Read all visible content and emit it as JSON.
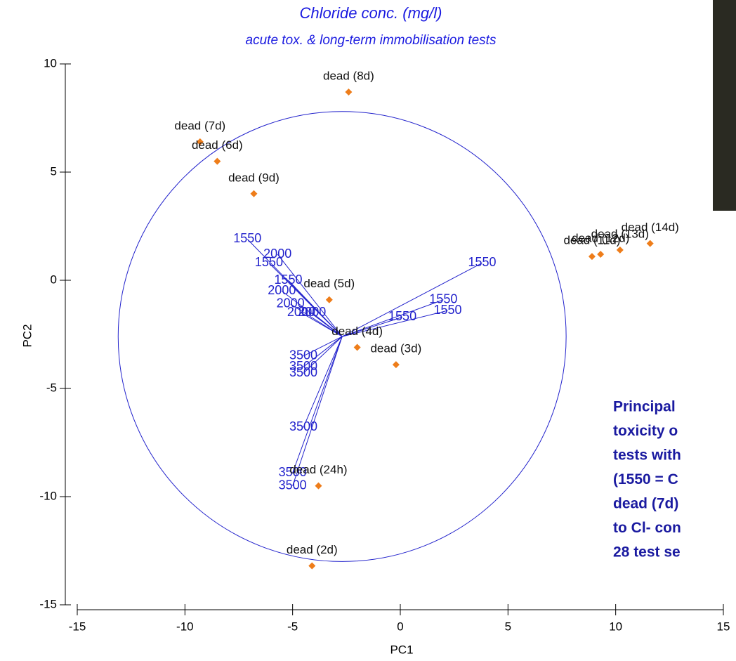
{
  "chart_data": {
    "type": "scatter",
    "title": "Chloride conc. (mg/l)",
    "subtitle": "acute tox. & long-term immobilisation tests",
    "xlabel": "PC1",
    "ylabel": "PC2",
    "xlim": [
      -15,
      15
    ],
    "ylim": [
      -15,
      10
    ],
    "xticks": [
      -15,
      -10,
      -5,
      0,
      5,
      10,
      15
    ],
    "yticks": [
      -15,
      -10,
      -5,
      0,
      5,
      10
    ],
    "points": {
      "color": "#ee7d1a",
      "labels": [
        "dead (8d)",
        "dead (7d)",
        "dead (6d)",
        "dead (9d)",
        "dead (5d)",
        "dead (4d)",
        "dead (3d)",
        "dead (24h)",
        "dead (2d)",
        "dead (11d)",
        "dead (12d)",
        "dead (13d)",
        "dead (14d)"
      ],
      "x": [
        -2.4,
        -9.3,
        -8.5,
        -6.8,
        -3.3,
        -2.0,
        -0.2,
        -3.8,
        -4.1,
        8.9,
        9.3,
        10.2,
        11.6
      ],
      "y": [
        8.7,
        6.4,
        5.5,
        4.0,
        -0.9,
        -3.1,
        -3.9,
        -9.5,
        -13.2,
        1.1,
        1.2,
        1.4,
        1.7
      ]
    },
    "loadings": {
      "color": "#2222cc",
      "labels": [
        "1550",
        "2000",
        "1550",
        "1550",
        "2000",
        "2000",
        "2000",
        "2000",
        "1550",
        "1550",
        "1550",
        "1550",
        "3500",
        "3500",
        "3500",
        "3500",
        "3500",
        "3500"
      ],
      "x": [
        -7.1,
        -5.7,
        -6.1,
        -5.2,
        -5.5,
        -5.1,
        -4.6,
        -4.1,
        3.8,
        2.0,
        2.2,
        0.1,
        -4.5,
        -4.5,
        -4.5,
        -4.5,
        -5.0,
        -5.0
      ],
      "y": [
        1.9,
        1.2,
        0.8,
        0.0,
        -0.5,
        -1.1,
        -1.5,
        -1.5,
        0.8,
        -0.9,
        -1.4,
        -1.7,
        -3.5,
        -4.0,
        -4.3,
        -6.8,
        -8.9,
        -9.5
      ]
    },
    "circle": {
      "center": [
        -2.7,
        -2.6
      ],
      "radius": 10.4,
      "color": "#2222cc"
    },
    "note": [
      "Principal",
      "toxicity o",
      "tests with",
      "(1550 = C",
      "dead (7d)",
      "to Cl- con",
      "28 test se"
    ]
  }
}
